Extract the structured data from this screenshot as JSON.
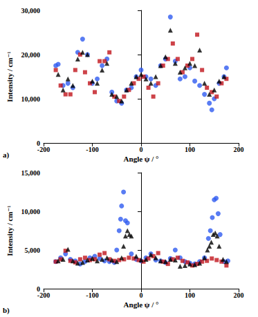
{
  "chart_data": [
    {
      "type": "scatter",
      "annotation": "a)",
      "x_label": "Angle ψ / °",
      "y_label": "Intensity / cm⁻¹",
      "xlim": [
        -200,
        200
      ],
      "xticks": [
        -200,
        -100,
        0,
        100,
        200
      ],
      "ylim": [
        0,
        30000
      ],
      "yticks": [
        0,
        10000,
        20000,
        30000
      ],
      "grid": false,
      "series": [
        {
          "color": "#2f5bf0",
          "marker": "circle",
          "x": [
            -175,
            -170,
            -160,
            -150,
            -140,
            -130,
            -120,
            -110,
            -100,
            -90,
            -80,
            -70,
            -60,
            -50,
            -40,
            -30,
            -20,
            -10,
            0,
            10,
            20,
            30,
            40,
            50,
            60,
            70,
            80,
            90,
            100,
            110,
            120,
            130,
            140,
            145,
            150,
            160,
            170,
            175
          ],
          "values": [
            17500,
            17800,
            13000,
            13500,
            12500,
            20500,
            23500,
            20000,
            13500,
            14500,
            17500,
            19000,
            11500,
            9500,
            9000,
            12000,
            12500,
            15000,
            16500,
            15000,
            14500,
            13000,
            17500,
            19000,
            28500,
            18500,
            14500,
            15000,
            17000,
            14000,
            13000,
            11000,
            9000,
            7500,
            10000,
            13500,
            15000,
            17000
          ]
        },
        {
          "color": "#c0141c",
          "marker": "square",
          "x": [
            -175,
            -165,
            -155,
            -145,
            -135,
            -125,
            -115,
            -105,
            -95,
            -85,
            -75,
            -65,
            -55,
            -45,
            -35,
            -25,
            -15,
            -5,
            5,
            15,
            25,
            35,
            45,
            55,
            65,
            75,
            85,
            95,
            105,
            115,
            125,
            135,
            145,
            155,
            165,
            175
          ],
          "values": [
            16500,
            13000,
            11000,
            11000,
            16500,
            20000,
            16000,
            13500,
            11500,
            18500,
            18500,
            20500,
            10500,
            9500,
            10500,
            12000,
            13500,
            14500,
            15000,
            12500,
            10500,
            13500,
            17500,
            19000,
            22500,
            19000,
            16000,
            17500,
            19000,
            24500,
            16500,
            12500,
            11500,
            10500,
            13500,
            14500
          ]
        },
        {
          "color": "#000000",
          "marker": "triangle",
          "x": [
            -170,
            -160,
            -150,
            -140,
            -130,
            -120,
            -110,
            -100,
            -90,
            -80,
            -70,
            -60,
            -50,
            -40,
            -30,
            -20,
            -10,
            0,
            10,
            20,
            30,
            40,
            50,
            60,
            70,
            80,
            90,
            100,
            110,
            120,
            130,
            140,
            150,
            160,
            170
          ],
          "values": [
            15500,
            12000,
            14500,
            13000,
            19000,
            20500,
            20000,
            14000,
            13500,
            16500,
            18000,
            11000,
            10500,
            9500,
            12000,
            13500,
            15000,
            15500,
            14500,
            13500,
            15000,
            17500,
            19500,
            25500,
            18000,
            16000,
            17000,
            18000,
            17500,
            21000,
            13500,
            11000,
            12000,
            14000,
            15000
          ]
        }
      ]
    },
    {
      "type": "scatter",
      "annotation": "b)",
      "x_label": "Angle ψ / °",
      "y_label": "Intensity / cm⁻¹",
      "xlim": [
        -200,
        200
      ],
      "xticks": [
        -200,
        -100,
        0,
        100,
        200
      ],
      "ylim": [
        0,
        15000
      ],
      "yticks": [
        0,
        5000,
        10000,
        15000
      ],
      "grid": false,
      "series": [
        {
          "color": "#2f5bf0",
          "marker": "circle",
          "x": [
            -175,
            -165,
            -155,
            -145,
            -135,
            -125,
            -115,
            -105,
            -95,
            -85,
            -75,
            -65,
            -55,
            -50,
            -45,
            -42,
            -40,
            -36,
            -32,
            -28,
            -20,
            -10,
            0,
            10,
            20,
            30,
            40,
            50,
            60,
            70,
            80,
            90,
            100,
            110,
            120,
            130,
            138,
            142,
            146,
            150,
            154,
            158,
            162,
            170,
            178
          ],
          "values": [
            3500,
            4000,
            4500,
            3800,
            3600,
            3200,
            3500,
            4000,
            4200,
            3900,
            3600,
            3500,
            3400,
            5000,
            7500,
            9000,
            10700,
            12500,
            8800,
            8500,
            4500,
            3800,
            3600,
            4000,
            4500,
            3700,
            3600,
            3400,
            3900,
            5000,
            4000,
            3500,
            3300,
            3200,
            3500,
            4000,
            6500,
            7500,
            9200,
            11500,
            11700,
            9700,
            7000,
            3500,
            3600
          ]
        },
        {
          "color": "#c0141c",
          "marker": "square",
          "x": [
            -175,
            -165,
            -155,
            -145,
            -135,
            -125,
            -115,
            -105,
            -95,
            -85,
            -75,
            -65,
            -55,
            -45,
            -35,
            -25,
            -15,
            -5,
            5,
            15,
            25,
            35,
            45,
            55,
            65,
            75,
            85,
            95,
            105,
            115,
            125,
            135,
            145,
            155,
            165,
            175
          ],
          "values": [
            3500,
            3800,
            4900,
            3600,
            3400,
            3800,
            4000,
            3700,
            3800,
            4400,
            4600,
            3800,
            3600,
            3700,
            3800,
            4000,
            3900,
            3700,
            3500,
            3900,
            4200,
            4600,
            3500,
            3200,
            3800,
            4000,
            3600,
            3400,
            3000,
            3200,
            3500,
            3600,
            3900,
            3700,
            3500,
            3000
          ]
        },
        {
          "color": "#000000",
          "marker": "triangle",
          "x": [
            -170,
            -160,
            -150,
            -140,
            -130,
            -120,
            -110,
            -100,
            -90,
            -80,
            -70,
            -60,
            -50,
            -40,
            -36,
            -32,
            -28,
            -24,
            -20,
            -10,
            0,
            10,
            20,
            30,
            40,
            50,
            60,
            70,
            80,
            90,
            100,
            110,
            120,
            130,
            136,
            140,
            144,
            148,
            152,
            156,
            160,
            168,
            175
          ],
          "values": [
            3600,
            3800,
            5100,
            3600,
            3300,
            3400,
            3700,
            3900,
            3600,
            3800,
            4000,
            3700,
            3500,
            4000,
            5500,
            6800,
            7500,
            7000,
            6800,
            4200,
            3700,
            3800,
            4400,
            4000,
            3600,
            3500,
            3800,
            3700,
            2900,
            3000,
            3200,
            3100,
            3300,
            4000,
            5000,
            5500,
            6000,
            7000,
            7200,
            6800,
            5500,
            3800,
            3500
          ]
        }
      ]
    }
  ]
}
